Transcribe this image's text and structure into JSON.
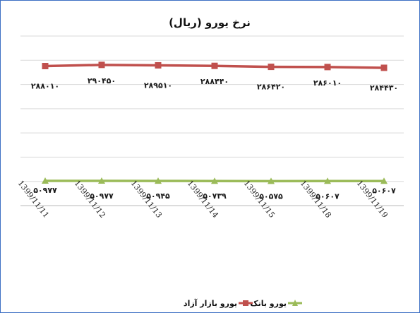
{
  "chart_data": {
    "type": "line",
    "title": "نرخ یورو (ریال)",
    "xlabel": "",
    "ylabel": "",
    "categories": [
      "1399/11/11",
      "1399/11/12",
      "1399/11/13",
      "1399/11/14",
      "1399/11/15",
      "1399/11/18",
      "1399/11/19"
    ],
    "series": [
      {
        "name": "یورو بازار آزاد",
        "color": "#c0504d",
        "marker": "square",
        "values": [
          288010,
          290450,
          289510,
          288440,
          286420,
          286010,
          284430
        ],
        "labels": [
          "۲۸۸۰۱۰",
          "۲۹۰۴۵۰",
          "۲۸۹۵۱۰",
          "۲۸۸۴۴۰",
          "۲۸۶۴۲۰",
          "۲۸۶۰۱۰",
          "۲۸۴۴۳۰"
        ]
      },
      {
        "name": "یورو بانک",
        "color": "#9bbb59",
        "marker": "triangle",
        "values": [
          50977,
          50977,
          50945,
          50739,
          50575,
          50607,
          50607
        ],
        "labels": [
          "۵۰۹۷۷",
          "۵۰۹۷۷",
          "۵۰۹۴۵",
          "۵۰۷۳۹",
          "۵۰۵۷۵",
          "۵۰۶۰۷",
          "۵۰۶۰۷"
        ]
      }
    ],
    "ylim": [
      0,
      350000
    ],
    "grid": true,
    "legend_position": "bottom"
  }
}
